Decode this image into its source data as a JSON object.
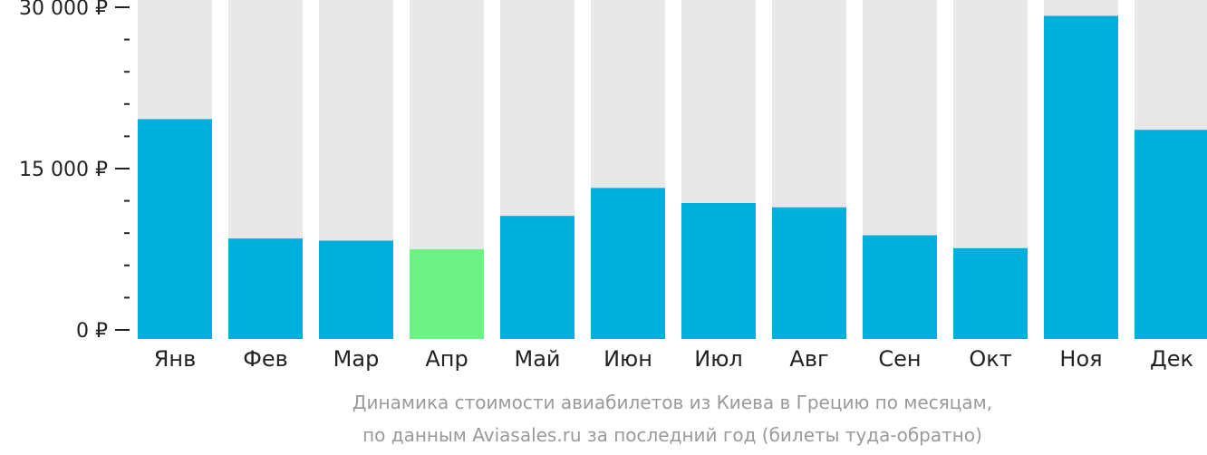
{
  "chart_data": {
    "type": "bar",
    "categories": [
      "Янв",
      "Фев",
      "Мар",
      "Апр",
      "Май",
      "Июн",
      "Июл",
      "Авг",
      "Сен",
      "Окт",
      "Ноя",
      "Дек"
    ],
    "values": [
      19600,
      8500,
      8300,
      7500,
      10600,
      13200,
      11800,
      11400,
      8800,
      7600,
      29200,
      18600
    ],
    "highlight_index": 3,
    "ylim": [
      0,
      30000
    ],
    "yticks": [
      {
        "value": 0,
        "label": "0 ₽"
      },
      {
        "value": 15000,
        "label": "15 000 ₽"
      },
      {
        "value": 30000,
        "label": "30 000 ₽"
      }
    ],
    "minor_tick_step": 3000,
    "grid": false,
    "title": "",
    "xlabel": "",
    "ylabel": "",
    "caption_lines": [
      "Динамика стоимости авиабилетов из Киева в Грецию по месяцам,",
      "по данным Aviasales.ru за последний год (билеты туда-обратно)"
    ],
    "colors": {
      "bar": "#00b0dc",
      "highlight": "#6cf285",
      "background_bar": "#e8e8e8",
      "axis": "#222222"
    }
  }
}
